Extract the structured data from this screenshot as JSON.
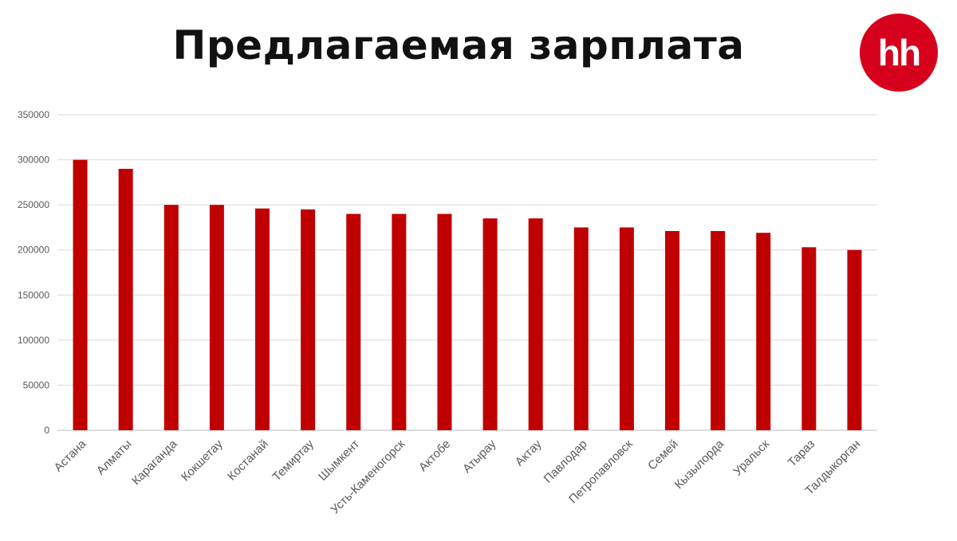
{
  "brand": {
    "logo_text": "hh",
    "logo_color": "#d6001c"
  },
  "chart_data": {
    "type": "bar",
    "title": "Предлагаемая зарплата",
    "xlabel": "",
    "ylabel": "",
    "ylim": [
      0,
      350000
    ],
    "yticks": [
      0,
      50000,
      100000,
      150000,
      200000,
      250000,
      300000,
      350000
    ],
    "grid": true,
    "bar_color": "#c00000",
    "categories": [
      "Астана",
      "Алматы",
      "Караганда",
      "Кокшетау",
      "Костанай",
      "Темиртау",
      "Шымкент",
      "Усть-Каменогорск",
      "Актобе",
      "Атырау",
      "Актау",
      "Павлодар",
      "Петропавловск",
      "Семей",
      "Кызылорда",
      "Уральск",
      "Тараз",
      "Талдыкорган"
    ],
    "values": [
      300000,
      290000,
      250000,
      250000,
      246000,
      245000,
      240000,
      240000,
      240000,
      235000,
      235000,
      225000,
      225000,
      221000,
      221000,
      219000,
      203000,
      200000
    ]
  }
}
